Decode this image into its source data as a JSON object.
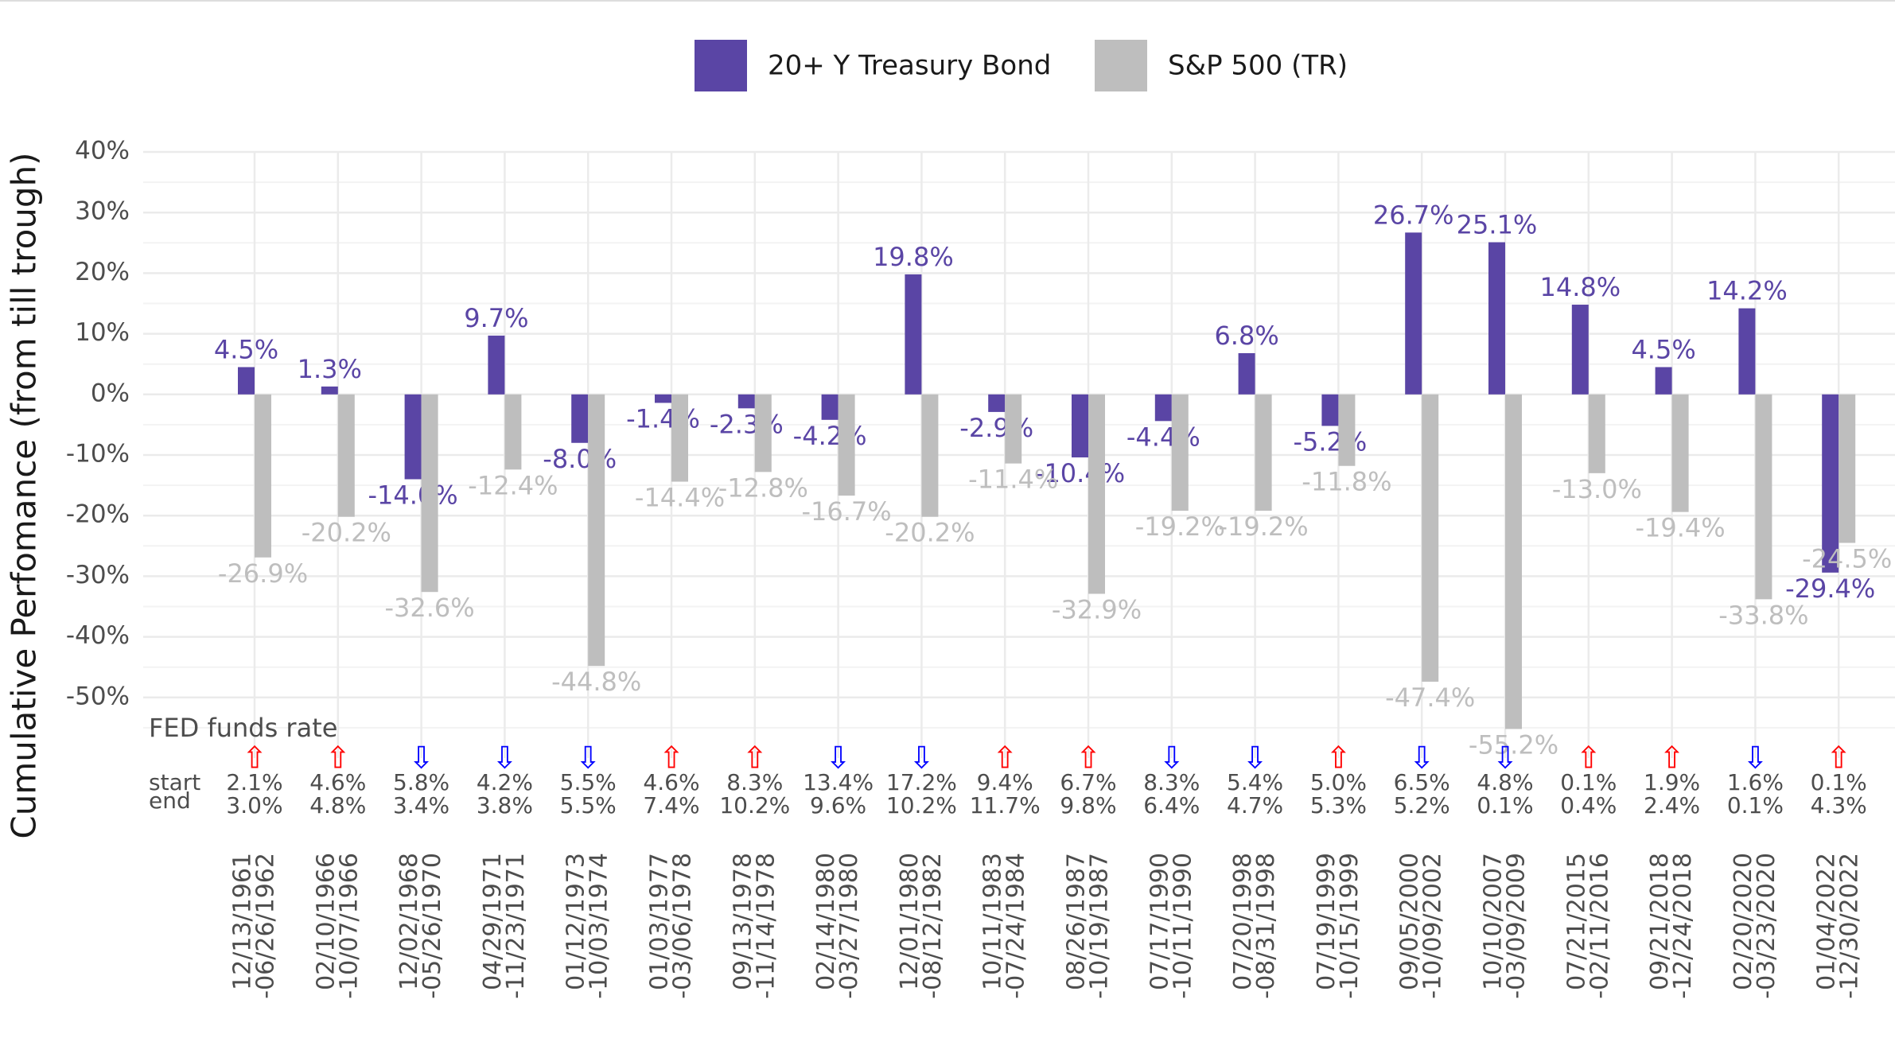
{
  "chart_data": {
    "type": "bar",
    "y_label": "Cumulative Perfomance (from till trough)",
    "categories": [
      [
        "12/13/1961",
        "-06/26/1962"
      ],
      [
        "02/10/1966",
        "-10/07/1966"
      ],
      [
        "12/02/1968",
        "-05/26/1970"
      ],
      [
        "04/29/1971",
        "-11/23/1971"
      ],
      [
        "01/12/1973",
        "-10/03/1974"
      ],
      [
        "01/03/1977",
        "-03/06/1978"
      ],
      [
        "09/13/1978",
        "-11/14/1978"
      ],
      [
        "02/14/1980",
        "-03/27/1980"
      ],
      [
        "12/01/1980",
        "-08/12/1982"
      ],
      [
        "10/11/1983",
        "-07/24/1984"
      ],
      [
        "08/26/1987",
        "-10/19/1987"
      ],
      [
        "07/17/1990",
        "-10/11/1990"
      ],
      [
        "07/20/1998",
        "-08/31/1998"
      ],
      [
        "07/19/1999",
        "-10/15/1999"
      ],
      [
        "09/05/2000",
        "-10/09/2002"
      ],
      [
        "10/10/2007",
        "-03/09/2009"
      ],
      [
        "07/21/2015",
        "-02/11/2016"
      ],
      [
        "09/21/2018",
        "-12/24/2018"
      ],
      [
        "02/20/2020",
        "-03/23/2020"
      ],
      [
        "01/04/2022",
        "-12/30/2022"
      ]
    ],
    "series": [
      {
        "name": "20+ Y Treasury Bond",
        "color": "#5a45a5",
        "values": [
          4.5,
          1.3,
          -14.0,
          9.7,
          -8.0,
          -1.4,
          -2.3,
          -4.2,
          19.8,
          -2.9,
          -10.4,
          -4.4,
          6.8,
          -5.2,
          26.7,
          25.1,
          14.8,
          4.5,
          14.2,
          -29.4
        ],
        "value_labels": [
          "4.5%",
          "1.3%",
          "-14.0%",
          "9.7%",
          "-8.0%",
          "-1.4%",
          "-2.3%",
          "-4.2%",
          "19.8%",
          "-2.9%",
          "-10.4%",
          "-4.4%",
          "6.8%",
          "-5.2%",
          "26.7%",
          "25.1%",
          "14.8%",
          "4.5%",
          "14.2%",
          "-29.4%"
        ]
      },
      {
        "name": "S&P 500 (TR)",
        "color": "#bebebe",
        "values": [
          -26.9,
          -20.2,
          -32.6,
          -12.4,
          -44.8,
          -14.4,
          -12.8,
          -16.7,
          -20.2,
          -11.4,
          -32.9,
          -19.2,
          -19.2,
          -11.8,
          -47.4,
          -55.2,
          -13.0,
          -19.4,
          -33.8,
          -24.5
        ],
        "value_labels": [
          "-26.9%",
          "-20.2%",
          "-32.6%",
          "-12.4%",
          "-44.8%",
          "-14.4%",
          "-12.8%",
          "-16.7%",
          "-20.2%",
          "-11.4%",
          "-32.9%",
          "-19.2%",
          "-19.2%",
          "-11.8%",
          "-47.4%",
          "-55.2%",
          "-13.0%",
          "-19.4%",
          "-33.8%",
          "-24.5%"
        ]
      }
    ],
    "ylim": [
      -60,
      40
    ],
    "yticks": [
      {
        "value": 40,
        "label": "40%"
      },
      {
        "value": 30,
        "label": "30%"
      },
      {
        "value": 20,
        "label": "20%"
      },
      {
        "value": 10,
        "label": "10%"
      },
      {
        "value": 0,
        "label": "0%"
      },
      {
        "value": -10,
        "label": "-10%"
      },
      {
        "value": -20,
        "label": "-20%"
      },
      {
        "value": -30,
        "label": "-30%"
      },
      {
        "value": -40,
        "label": "-40%"
      },
      {
        "value": -50,
        "label": "-50%"
      }
    ],
    "grid": true,
    "legend": "top",
    "fed": {
      "title": "FED funds rate",
      "start_label": "start",
      "end_label": "end",
      "arrow_symbols": {
        "up": "⇧",
        "down": "⇩"
      },
      "arrow_colors": {
        "up": "#ff0000",
        "down": "#0000ff"
      },
      "direction": [
        "up",
        "up",
        "down",
        "down",
        "down",
        "up",
        "up",
        "down",
        "down",
        "up",
        "up",
        "down",
        "down",
        "up",
        "down",
        "down",
        "up",
        "up",
        "down",
        "up"
      ],
      "start": [
        "2.1%",
        "4.6%",
        "5.8%",
        "4.2%",
        "5.5%",
        "4.6%",
        "8.3%",
        "13.4%",
        "17.2%",
        "9.4%",
        "6.7%",
        "8.3%",
        "5.4%",
        "5.0%",
        "6.5%",
        "4.8%",
        "0.1%",
        "1.9%",
        "1.6%",
        "0.1%"
      ],
      "end": [
        "3.0%",
        "4.8%",
        "3.4%",
        "3.8%",
        "5.5%",
        "7.4%",
        "10.2%",
        "9.6%",
        "10.2%",
        "11.7%",
        "9.8%",
        "6.4%",
        "4.7%",
        "5.3%",
        "5.2%",
        "0.1%",
        "0.4%",
        "2.4%",
        "0.1%",
        "4.3%"
      ]
    }
  }
}
